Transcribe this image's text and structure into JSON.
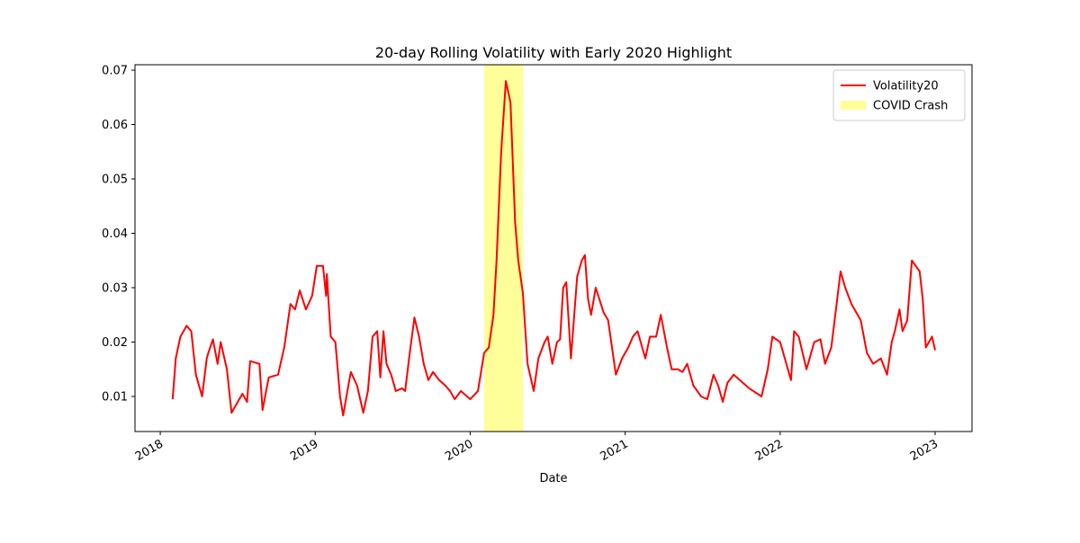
{
  "chart_data": {
    "type": "line",
    "title": "20-day Rolling Volatility with Early 2020 Highlight",
    "x_label": "Date",
    "x": [
      2018.08,
      2018.1,
      2018.13,
      2018.17,
      2018.2,
      2018.23,
      2018.27,
      2018.3,
      2018.31,
      2018.34,
      2018.37,
      2018.39,
      2018.43,
      2018.46,
      2018.51,
      2018.53,
      2018.56,
      2018.58,
      2018.64,
      2018.66,
      2018.7,
      2018.76,
      2018.8,
      2018.84,
      2018.87,
      2018.9,
      2018.94,
      2018.98,
      2019.01,
      2019.05,
      2019.07,
      2019.075,
      2019.1,
      2019.13,
      2019.16,
      2019.18,
      2019.22,
      2019.23,
      2019.27,
      2019.31,
      2019.34,
      2019.37,
      2019.4,
      2019.42,
      2019.44,
      2019.46,
      2019.49,
      2019.52,
      2019.56,
      2019.58,
      2019.61,
      2019.64,
      2019.67,
      2019.7,
      2019.73,
      2019.76,
      2019.8,
      2019.84,
      2019.87,
      2019.9,
      2019.94,
      2020.0,
      2020.05,
      2020.09,
      2020.12,
      2020.15,
      2020.17,
      2020.2,
      2020.23,
      2020.26,
      2020.29,
      2020.31,
      2020.34,
      2020.37,
      2020.41,
      2020.44,
      2020.48,
      2020.5,
      2020.53,
      2020.56,
      2020.58,
      2020.6,
      2020.62,
      2020.65,
      2020.69,
      2020.72,
      2020.74,
      2020.76,
      2020.78,
      2020.81,
      2020.86,
      2020.89,
      2020.92,
      2020.94,
      2020.98,
      2021.02,
      2021.05,
      2021.08,
      2021.13,
      2021.16,
      2021.2,
      2021.23,
      2021.27,
      2021.3,
      2021.34,
      2021.37,
      2021.4,
      2021.44,
      2021.49,
      2021.53,
      2021.57,
      2021.6,
      2021.63,
      2021.66,
      2021.7,
      2021.76,
      2021.8,
      2021.88,
      2021.92,
      2021.95,
      2022.0,
      2022.07,
      2022.09,
      2022.12,
      2022.17,
      2022.22,
      2022.26,
      2022.29,
      2022.33,
      2022.36,
      2022.39,
      2022.42,
      2022.46,
      2022.52,
      2022.56,
      2022.6,
      2022.65,
      2022.69,
      2022.72,
      2022.74,
      2022.77,
      2022.79,
      2022.82,
      2022.85,
      2022.9,
      2022.92,
      2022.94,
      2022.98,
      2023.0
    ],
    "series": [
      {
        "name": "Volatility20",
        "color": "#ff0000",
        "values": [
          0.0095,
          0.017,
          0.021,
          0.023,
          0.022,
          0.014,
          0.01,
          0.017,
          0.018,
          0.0205,
          0.016,
          0.02,
          0.015,
          0.007,
          0.0095,
          0.0105,
          0.009,
          0.0165,
          0.016,
          0.0075,
          0.0135,
          0.014,
          0.019,
          0.027,
          0.026,
          0.0295,
          0.026,
          0.0285,
          0.034,
          0.034,
          0.0285,
          0.0325,
          0.021,
          0.02,
          0.01,
          0.0065,
          0.013,
          0.0145,
          0.012,
          0.007,
          0.011,
          0.021,
          0.022,
          0.0135,
          0.022,
          0.016,
          0.014,
          0.011,
          0.0115,
          0.011,
          0.018,
          0.0245,
          0.021,
          0.016,
          0.013,
          0.0145,
          0.013,
          0.012,
          0.011,
          0.0095,
          0.011,
          0.0095,
          0.011,
          0.018,
          0.019,
          0.025,
          0.035,
          0.055,
          0.068,
          0.064,
          0.042,
          0.035,
          0.029,
          0.016,
          0.011,
          0.017,
          0.02,
          0.021,
          0.016,
          0.02,
          0.0205,
          0.03,
          0.031,
          0.017,
          0.032,
          0.035,
          0.036,
          0.028,
          0.025,
          0.03,
          0.0255,
          0.024,
          0.018,
          0.014,
          0.017,
          0.019,
          0.021,
          0.022,
          0.017,
          0.021,
          0.021,
          0.025,
          0.019,
          0.015,
          0.015,
          0.0145,
          0.016,
          0.012,
          0.01,
          0.0095,
          0.014,
          0.012,
          0.009,
          0.0125,
          0.014,
          0.0125,
          0.0115,
          0.01,
          0.015,
          0.021,
          0.02,
          0.013,
          0.022,
          0.021,
          0.015,
          0.02,
          0.0205,
          0.016,
          0.019,
          0.026,
          0.033,
          0.03,
          0.027,
          0.024,
          0.018,
          0.016,
          0.017,
          0.014,
          0.02,
          0.022,
          0.026,
          0.022,
          0.024,
          0.035,
          0.033,
          0.028,
          0.019,
          0.021,
          0.0185
        ]
      }
    ],
    "spans": [
      {
        "label": "COVID Crash",
        "start": 2020.09,
        "end": 2020.34,
        "color": "#ffff99"
      }
    ],
    "xlim": [
      2017.837,
      2023.238
    ],
    "xticks": [
      2018,
      2019,
      2020,
      2021,
      2022,
      2023
    ],
    "ylim": [
      0.00355,
      0.071
    ],
    "yticks": [
      0.01,
      0.02,
      0.03,
      0.04,
      0.05,
      0.06,
      0.07
    ],
    "legend": "upper right"
  }
}
